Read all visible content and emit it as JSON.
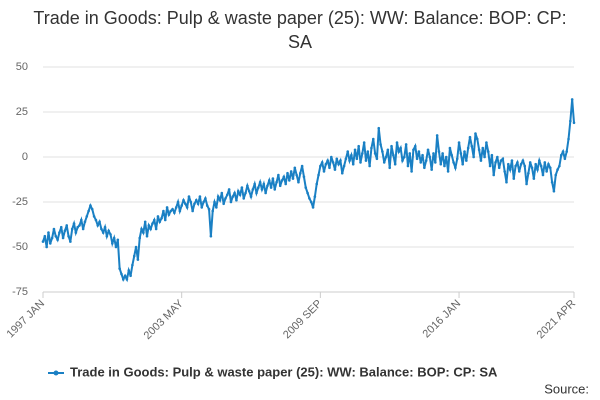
{
  "chart_data": {
    "type": "line",
    "title": "Trade in Goods: Pulp & waste paper (25): WW: Balance: BOP: CP: SA",
    "source": "Source:",
    "categories": [
      "1997 JAN",
      null,
      null,
      null,
      null,
      null,
      null,
      null,
      null,
      null,
      null,
      null,
      null,
      null,
      null,
      null,
      null,
      null,
      null,
      null,
      null,
      null,
      null,
      null,
      null,
      null,
      null,
      null,
      null,
      null,
      null,
      null,
      null,
      null,
      null,
      null,
      null,
      null,
      null,
      null,
      null,
      null,
      null,
      null,
      null,
      null,
      null,
      null,
      null,
      null,
      null,
      null,
      null,
      null,
      null,
      null,
      null,
      null,
      null,
      null,
      null,
      null,
      null,
      null,
      null,
      null,
      null,
      null,
      null,
      null,
      null,
      null,
      null,
      null,
      null,
      null,
      "2003 MAY",
      null,
      null,
      null,
      null,
      null,
      null,
      null,
      null,
      null,
      null,
      null,
      null,
      null,
      null,
      null,
      null,
      null,
      null,
      null,
      null,
      null,
      null,
      null,
      null,
      null,
      null,
      null,
      null,
      null,
      null,
      null,
      null,
      null,
      null,
      null,
      null,
      null,
      null,
      null,
      null,
      null,
      null,
      null,
      null,
      null,
      null,
      null,
      null,
      null,
      null,
      null,
      null,
      null,
      null,
      null,
      null,
      null,
      null,
      null,
      null,
      null,
      null,
      null,
      null,
      null,
      null,
      null,
      null,
      null,
      null,
      null,
      null,
      null,
      null,
      null,
      "2009 SEP",
      null,
      null,
      null,
      null,
      null,
      null,
      null,
      null,
      null,
      null,
      null,
      null,
      null,
      null,
      null,
      null,
      null,
      null,
      null,
      null,
      null,
      null,
      null,
      null,
      null,
      null,
      null,
      null,
      null,
      null,
      null,
      null,
      null,
      null,
      null,
      null,
      null,
      null,
      null,
      null,
      null,
      null,
      null,
      null,
      null,
      null,
      null,
      null,
      null,
      null,
      null,
      null,
      null,
      null,
      null,
      null,
      null,
      null,
      null,
      null,
      null,
      null,
      null,
      null,
      null,
      null,
      null,
      null,
      null,
      null,
      null,
      null,
      null,
      null,
      null,
      "2016 JAN",
      null,
      null,
      null,
      null,
      null,
      null,
      null,
      null,
      null,
      null,
      null,
      null,
      null,
      null,
      null,
      null,
      null,
      null,
      null,
      null,
      null,
      null,
      null,
      null,
      null,
      null,
      null,
      null,
      null,
      null,
      null,
      null,
      null,
      null,
      null,
      null,
      null,
      null,
      null,
      null,
      null,
      null,
      null,
      null,
      null,
      null,
      null,
      null,
      null,
      null,
      null,
      null,
      null,
      null,
      null,
      null,
      null,
      null,
      null,
      null,
      null,
      null,
      "2021 APR"
    ],
    "series": [
      {
        "name": "Trade in Goods: Pulp & waste paper (25): WW: Balance: BOP: CP: SA",
        "color": "#1a80c4",
        "values": [
          -47,
          -44,
          -50,
          -42,
          -48,
          -45,
          -40,
          -44,
          -46,
          -42,
          -39,
          -45,
          -41,
          -38,
          -44,
          -47,
          -40,
          -37,
          -42,
          -39,
          -38,
          -35,
          -40,
          -36,
          -33,
          -30,
          -27,
          -29,
          -33,
          -35,
          -38,
          -36,
          -40,
          -42,
          -39,
          -44,
          -41,
          -43,
          -48,
          -45,
          -50,
          -46,
          -62,
          -65,
          -68,
          -66,
          -68,
          -63,
          -66,
          -60,
          -55,
          -50,
          -57,
          -45,
          -40,
          -42,
          -36,
          -44,
          -38,
          -40,
          -37,
          -35,
          -40,
          -33,
          -36,
          -34,
          -30,
          -35,
          -28,
          -32,
          -30,
          -29,
          -31,
          -28,
          -25,
          -30,
          -27,
          -24,
          -26,
          -28,
          -22,
          -25,
          -30,
          -26,
          -24,
          -26,
          -22,
          -28,
          -25,
          -23,
          -27,
          -29,
          -44,
          -30,
          -25,
          -28,
          -22,
          -24,
          -20,
          -26,
          -23,
          -21,
          -18,
          -25,
          -22,
          -20,
          -24,
          -19,
          -21,
          -17,
          -23,
          -20,
          -16,
          -19,
          -22,
          -18,
          -15,
          -20,
          -17,
          -14,
          -18,
          -15,
          -20,
          -16,
          -13,
          -17,
          -12,
          -18,
          -14,
          -10,
          -16,
          -13,
          -11,
          -15,
          -9,
          -13,
          -8,
          -12,
          -6,
          -10,
          -14,
          -9,
          -5,
          -11,
          -17,
          -20,
          -23,
          -25,
          -28,
          -22,
          -15,
          -10,
          -5,
          -3,
          -8,
          -4,
          -2,
          -6,
          0,
          -3,
          -7,
          -1,
          -4,
          -2,
          -9,
          -5,
          -1,
          3,
          -2,
          1,
          -4,
          4,
          -1,
          6,
          -3,
          2,
          8,
          -2,
          3,
          -5,
          5,
          10,
          2,
          -1,
          16,
          7,
          3,
          -3,
          0,
          4,
          -6,
          6,
          1,
          -4,
          8,
          3,
          5,
          -2,
          0,
          7,
          -5,
          2,
          -8,
          4,
          6,
          -1,
          3,
          -3,
          1,
          -6,
          -2,
          4,
          0,
          -7,
          2,
          -3,
          12,
          3,
          -4,
          2,
          -5,
          0,
          -8,
          5,
          1,
          -3,
          -6,
          -1,
          8,
          2,
          -4,
          3,
          -2,
          5,
          11,
          6,
          0,
          13,
          10,
          4,
          -2,
          5,
          0,
          8,
          3,
          -5,
          1,
          -10,
          -3,
          0,
          -6,
          -2,
          -1,
          -8,
          -14,
          -4,
          -7,
          -2,
          -12,
          -5,
          -3,
          -8,
          -4,
          -2,
          -5,
          -15,
          -9,
          -3,
          -6,
          -12,
          -4,
          -7,
          -2,
          -5,
          -10,
          -3,
          -8,
          -4,
          -6,
          -14,
          -19,
          -10,
          -7,
          -5,
          1,
          3,
          -1,
          3,
          10,
          20,
          32,
          19
        ]
      }
    ],
    "ylim": [
      -75,
      50
    ],
    "yticks": [
      -75,
      -50,
      -25,
      0,
      25,
      50
    ],
    "grid": true
  }
}
